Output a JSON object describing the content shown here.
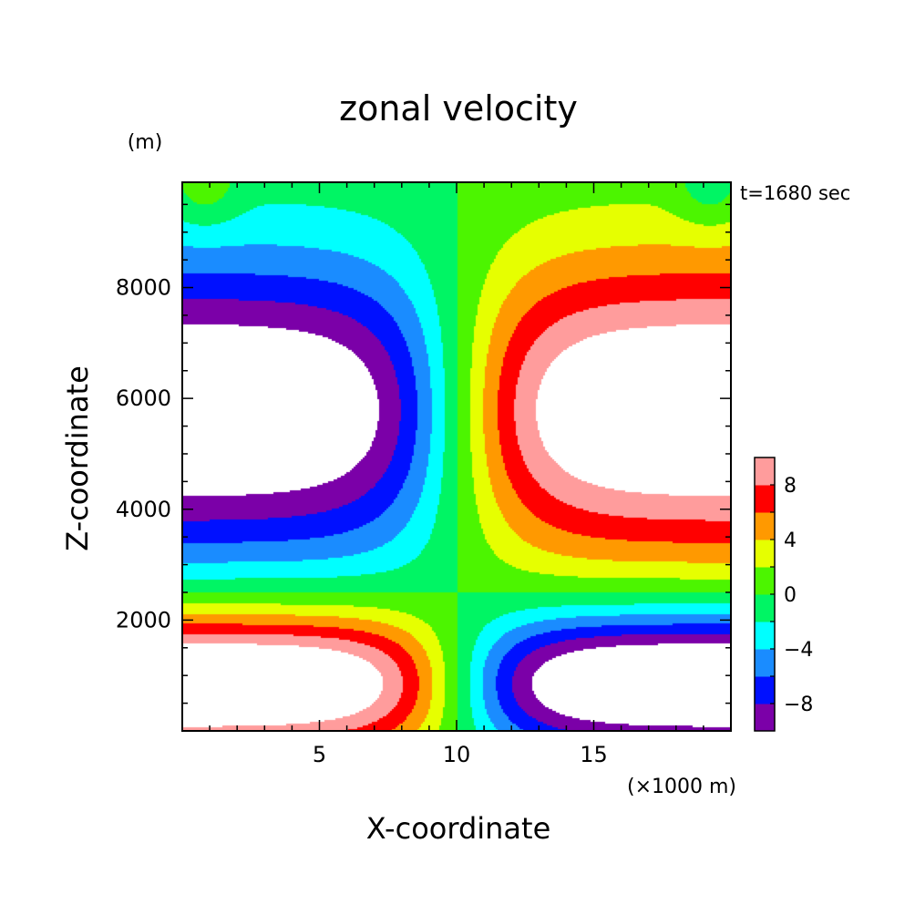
{
  "chart_data": {
    "type": "heatmap",
    "title": "zonal velocity",
    "xlabel": "X-coordinate",
    "ylabel": "Z-coordinate",
    "x_unit_label": "(×1000 m)",
    "y_unit_label": "(m)",
    "time_label": "t=1680 sec",
    "xlim": [
      0,
      20
    ],
    "ylim": [
      0,
      9900
    ],
    "x_ticks": [
      5,
      10,
      15
    ],
    "x_tick_labels": [
      "5",
      "10",
      "15"
    ],
    "y_ticks": [
      2000,
      4000,
      6000,
      8000
    ],
    "y_tick_labels": [
      "2000",
      "4000",
      "6000",
      "8000"
    ],
    "colorbar": {
      "levels": [
        -10,
        -8,
        -6,
        -4,
        -2,
        0,
        2,
        4,
        6,
        8,
        10
      ],
      "colors": [
        "#7b00a8",
        "#0010ff",
        "#1a8cff",
        "#00ffff",
        "#00f564",
        "#4cf500",
        "#e6ff00",
        "#ff9900",
        "#ff0000",
        "#ff9c9c"
      ],
      "tick_values": [
        -8,
        -4,
        0,
        4,
        8
      ],
      "tick_labels": [
        "−8",
        "−4",
        "0",
        "4",
        "8"
      ],
      "out_of_range_color": "#ffffff"
    }
  }
}
